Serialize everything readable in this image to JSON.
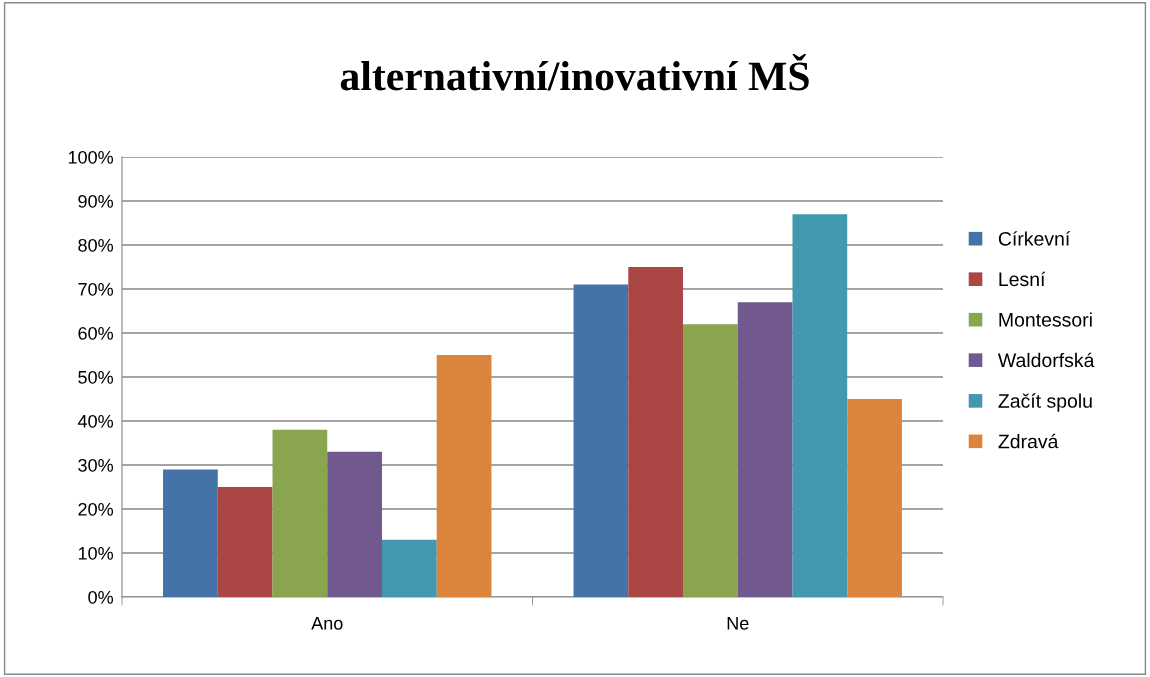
{
  "chart_data": {
    "type": "bar",
    "title": "alternativní/inovativní MŠ",
    "categories": [
      "Ano",
      "Ne"
    ],
    "series": [
      {
        "name": "Církevní",
        "color": "#4572a7",
        "values": [
          29,
          71
        ]
      },
      {
        "name": "Lesní",
        "color": "#aa4643",
        "values": [
          25,
          75
        ]
      },
      {
        "name": "Montessori",
        "color": "#89a54e",
        "values": [
          38,
          62
        ]
      },
      {
        "name": "Waldorfská",
        "color": "#71588f",
        "values": [
          33,
          67
        ]
      },
      {
        "name": "Začít spolu",
        "color": "#4198af",
        "values": [
          13,
          87
        ]
      },
      {
        "name": "Zdravá",
        "color": "#db843d",
        "values": [
          55,
          45
        ]
      }
    ],
    "ylim": [
      0,
      100
    ],
    "yticks": [
      {
        "value": 0,
        "label": "0%"
      },
      {
        "value": 10,
        "label": "10%"
      },
      {
        "value": 20,
        "label": "20%"
      },
      {
        "value": 30,
        "label": "30%"
      },
      {
        "value": 40,
        "label": "40%"
      },
      {
        "value": 50,
        "label": "50%"
      },
      {
        "value": 60,
        "label": "60%"
      },
      {
        "value": 70,
        "label": "70%"
      },
      {
        "value": 80,
        "label": "80%"
      },
      {
        "value": 90,
        "label": "90%"
      },
      {
        "value": 100,
        "label": "100%"
      }
    ],
    "grid": "y",
    "legend": "right"
  }
}
